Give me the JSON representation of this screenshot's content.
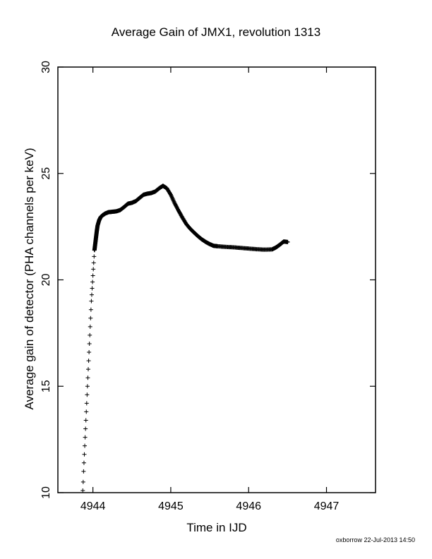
{
  "chart_data": {
    "type": "scatter",
    "title": "Average Gain of JMX1, revolution 1313",
    "xlabel": "Time in IJD",
    "ylabel": "Average gain of detector (PHA channels per keV)",
    "xlim": [
      4943.55,
      4947.63
    ],
    "ylim": [
      10,
      30
    ],
    "xticks": [
      4944,
      4945,
      4946,
      4947
    ],
    "yticks": [
      10,
      15,
      20,
      25,
      30
    ],
    "marker": "+",
    "color": "#000000",
    "grid": false,
    "legend": "none",
    "points": [
      [
        4943.87,
        10.1
      ],
      [
        4943.875,
        10.5
      ],
      [
        4943.88,
        11.0
      ],
      [
        4943.885,
        11.4
      ],
      [
        4943.89,
        11.8
      ],
      [
        4943.895,
        12.2
      ],
      [
        4943.9,
        12.6
      ],
      [
        4943.905,
        13.0
      ],
      [
        4943.91,
        13.4
      ],
      [
        4943.915,
        13.8
      ],
      [
        4943.92,
        14.2
      ],
      [
        4943.925,
        14.6
      ],
      [
        4943.93,
        15.0
      ],
      [
        4943.935,
        15.4
      ],
      [
        4943.94,
        15.8
      ],
      [
        4943.945,
        16.2
      ],
      [
        4943.95,
        16.6
      ],
      [
        4943.955,
        17.0
      ],
      [
        4943.96,
        17.4
      ],
      [
        4943.965,
        17.8
      ],
      [
        4943.97,
        18.2
      ],
      [
        4943.975,
        18.6
      ],
      [
        4943.98,
        19.0
      ],
      [
        4943.985,
        19.3
      ],
      [
        4943.99,
        19.6
      ],
      [
        4943.995,
        19.9
      ],
      [
        4944.0,
        20.2
      ],
      [
        4944.005,
        20.5
      ],
      [
        4944.01,
        20.8
      ],
      [
        4944.015,
        21.1
      ],
      [
        4944.02,
        21.4
      ],
      [
        4944.03,
        21.7
      ],
      [
        4944.04,
        22.0
      ],
      [
        4944.05,
        22.3
      ],
      [
        4944.06,
        22.55
      ],
      [
        4944.08,
        22.8
      ],
      [
        4944.1,
        22.95
      ],
      [
        4944.13,
        23.05
      ],
      [
        4944.16,
        23.12
      ],
      [
        4944.2,
        23.18
      ],
      [
        4944.25,
        23.2
      ],
      [
        4944.3,
        23.22
      ],
      [
        4944.35,
        23.28
      ],
      [
        4944.4,
        23.42
      ],
      [
        4944.45,
        23.58
      ],
      [
        4944.5,
        23.62
      ],
      [
        4944.55,
        23.7
      ],
      [
        4944.6,
        23.85
      ],
      [
        4944.65,
        24.0
      ],
      [
        4944.7,
        24.05
      ],
      [
        4944.75,
        24.08
      ],
      [
        4944.8,
        24.15
      ],
      [
        4944.85,
        24.3
      ],
      [
        4944.9,
        24.42
      ],
      [
        4944.95,
        24.3
      ],
      [
        4945.0,
        24.0
      ],
      [
        4945.05,
        23.6
      ],
      [
        4945.1,
        23.25
      ],
      [
        4945.15,
        22.92
      ],
      [
        4945.2,
        22.62
      ],
      [
        4945.25,
        22.4
      ],
      [
        4945.3,
        22.22
      ],
      [
        4945.35,
        22.05
      ],
      [
        4945.4,
        21.9
      ],
      [
        4945.45,
        21.78
      ],
      [
        4945.5,
        21.68
      ],
      [
        4945.55,
        21.6
      ],
      [
        4945.6,
        21.58
      ],
      [
        4945.7,
        21.55
      ],
      [
        4945.8,
        21.53
      ],
      [
        4945.9,
        21.5
      ],
      [
        4946.0,
        21.47
      ],
      [
        4946.1,
        21.44
      ],
      [
        4946.2,
        21.42
      ],
      [
        4946.3,
        21.43
      ],
      [
        4946.35,
        21.52
      ],
      [
        4946.4,
        21.65
      ],
      [
        4946.45,
        21.8
      ],
      [
        4946.5,
        21.78
      ]
    ]
  },
  "footer": "oxborrow 22-Jul-2013 14:50"
}
